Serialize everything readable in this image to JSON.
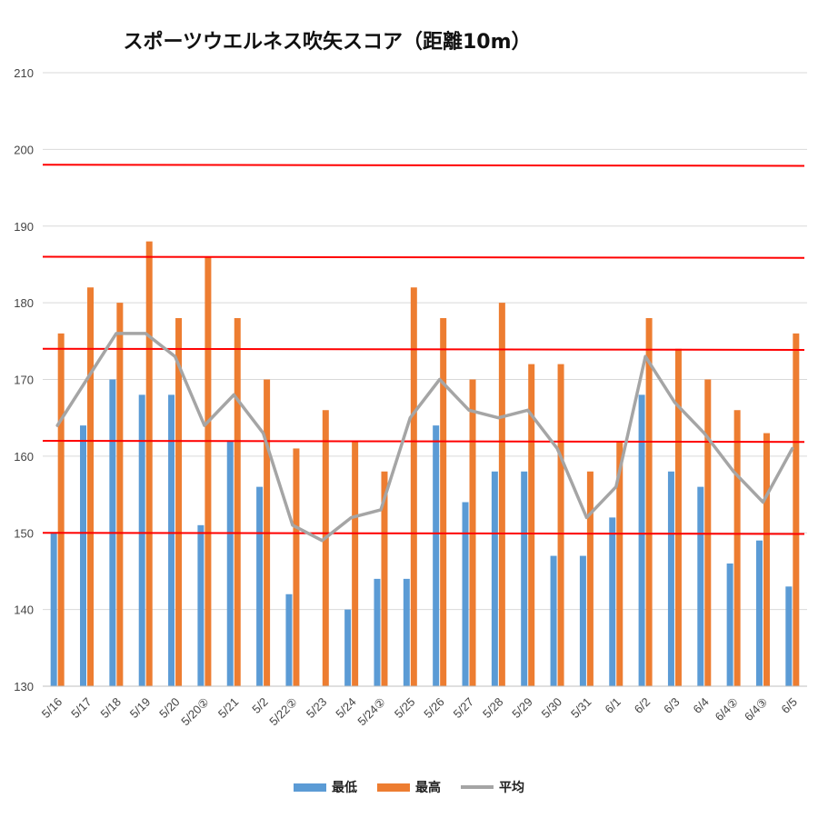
{
  "chart_data": {
    "type": "bar",
    "title": "スポーツウエルネス吹矢スコア（距離10m）",
    "categories": [
      "5/16",
      "5/17",
      "5/18",
      "5/19",
      "5/20",
      "5/20②",
      "5/21",
      "5/2",
      "5/22②",
      "5/23",
      "5/24",
      "5/24②",
      "5/25",
      "5/26",
      "5/27",
      "5/28",
      "5/29",
      "5/30",
      "5/31",
      "6/1",
      "6/2",
      "6/3",
      "6/4",
      "6/4②",
      "6/4③",
      "6/5"
    ],
    "series": [
      {
        "name": "最低",
        "type": "bar",
        "color": "#5b9bd5",
        "values": [
          150,
          164,
          170,
          168,
          168,
          151,
          162,
          156,
          142,
          null,
          140,
          144,
          144,
          164,
          154,
          158,
          158,
          147,
          147,
          152,
          168,
          158,
          156,
          146,
          149,
          143
        ]
      },
      {
        "name": "最高",
        "type": "bar",
        "color": "#ed7d31",
        "values": [
          176,
          182,
          180,
          188,
          178,
          186,
          178,
          170,
          161,
          166,
          162,
          158,
          182,
          178,
          170,
          180,
          172,
          172,
          158,
          162,
          178,
          174,
          170,
          166,
          163,
          176
        ]
      },
      {
        "name": "平均",
        "type": "line",
        "color": "#a5a5a5",
        "values": [
          164,
          170,
          176,
          176,
          173,
          164,
          168,
          163,
          151,
          149,
          152,
          153,
          165,
          170,
          166,
          165,
          166,
          161,
          152,
          156,
          173,
          167,
          163,
          158,
          154,
          161
        ]
      }
    ],
    "reference_lines": [
      150,
      162,
      174,
      186,
      198
    ],
    "reference_line_color": "#ff0000",
    "ylim": [
      130,
      210
    ],
    "yticks": [
      130,
      140,
      150,
      160,
      170,
      180,
      190,
      200,
      210
    ],
    "grid": true,
    "legend_position": "bottom"
  }
}
